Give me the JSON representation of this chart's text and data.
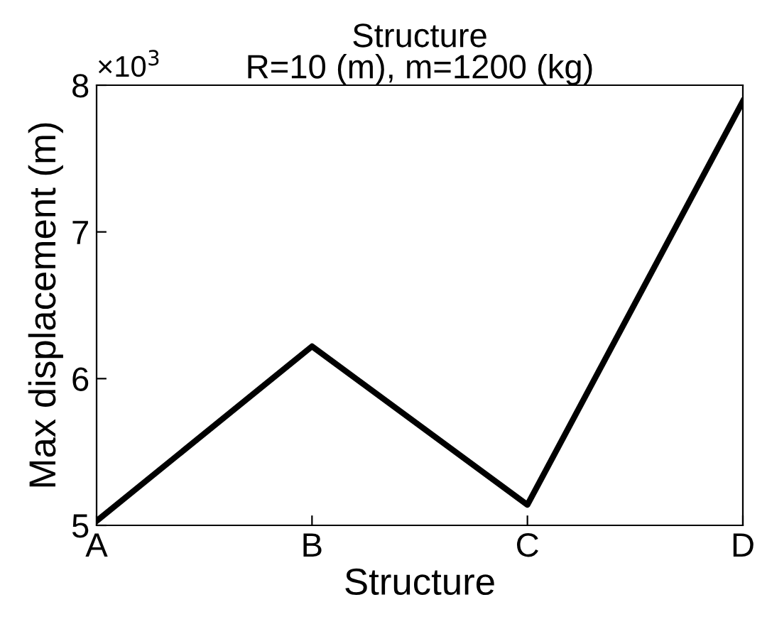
{
  "chart_data": {
    "type": "line",
    "title": "Structure\nR=10 (m), m=1200 (kg)",
    "xlabel": "Structure",
    "ylabel": "Max displacement (m)",
    "categories": [
      "A",
      "B",
      "C",
      "D"
    ],
    "series": [
      {
        "color": "#000000",
        "values": [
          5.03,
          6.22,
          5.14,
          7.89
        ]
      }
    ],
    "ylim": [
      5,
      8
    ],
    "yticks": [
      5,
      6,
      7,
      8
    ],
    "annotations": [
      "×10$^{3}$"
    ],
    "grid": false,
    "legend": false,
    "marker": "none",
    "line_style": "solid"
  }
}
